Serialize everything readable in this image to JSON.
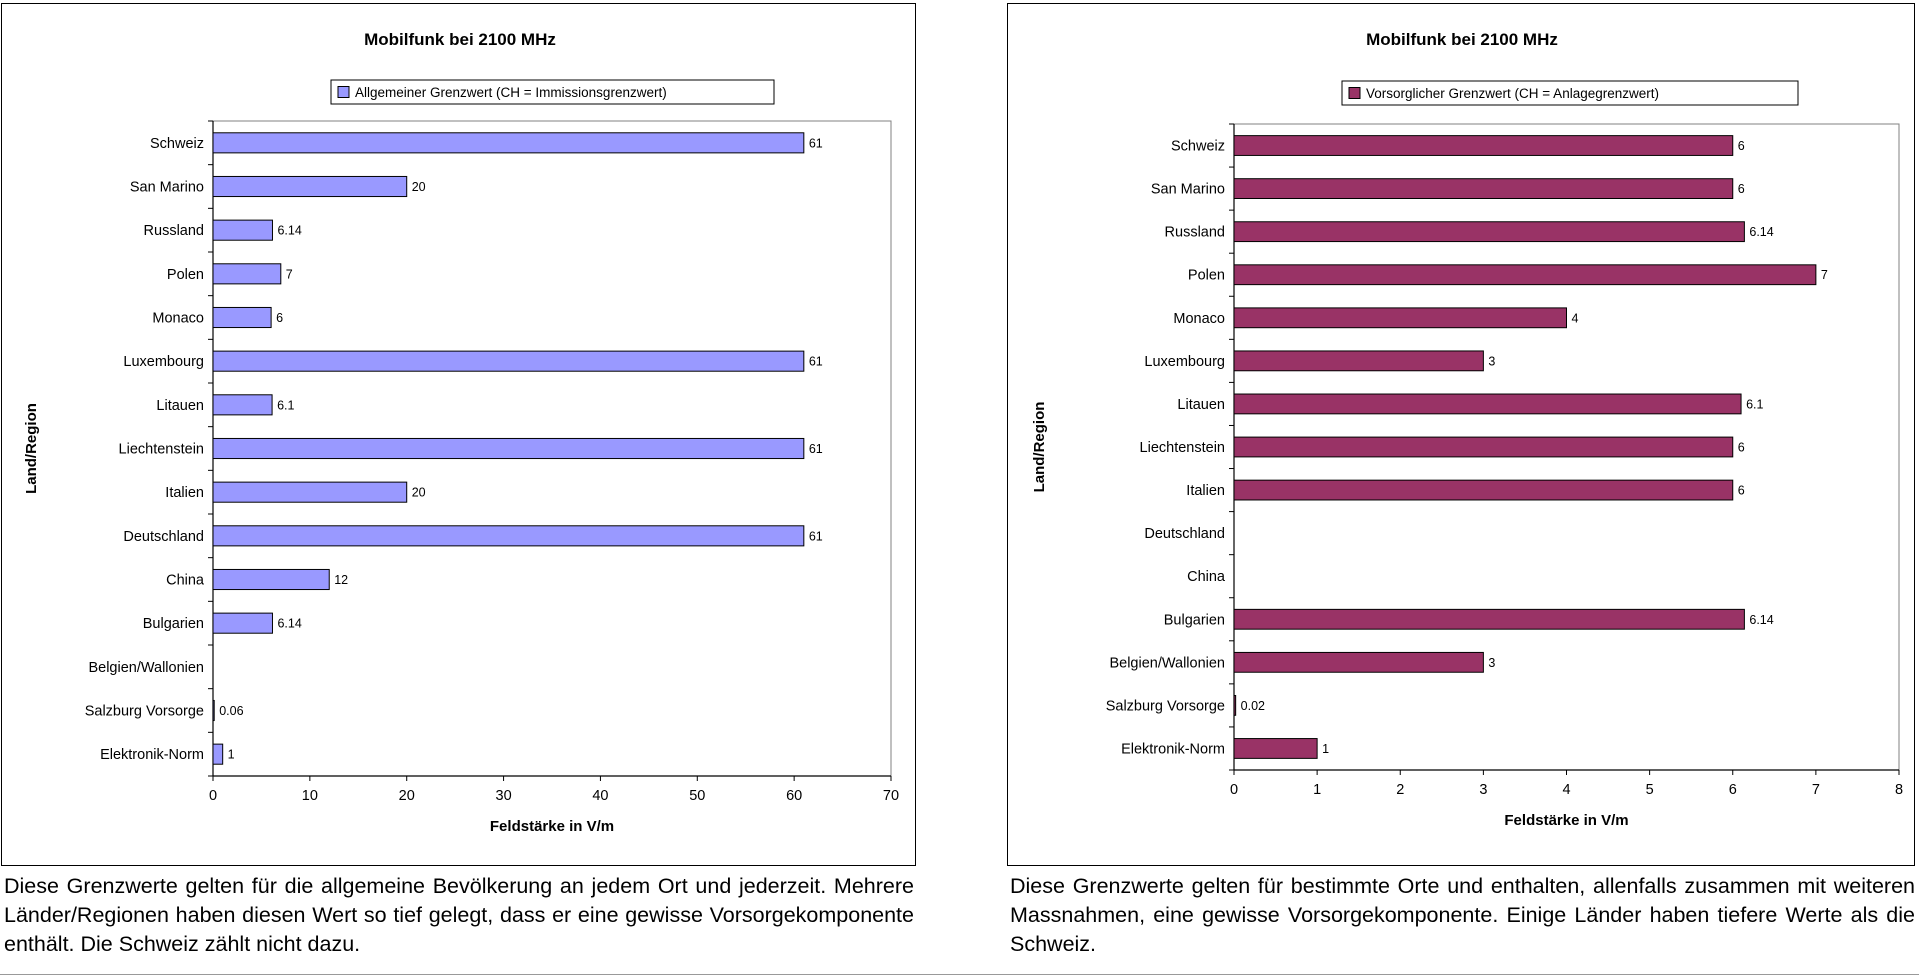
{
  "chart_data": [
    {
      "type": "bar",
      "orientation": "horizontal",
      "title": "Mobilfunk bei 2100 MHz",
      "xlabel": "Feldstärke in V/m",
      "ylabel": "Land/Region",
      "xlim": [
        0,
        70
      ],
      "xticks": [
        "0",
        "10",
        "20",
        "30",
        "40",
        "50",
        "60",
        "70"
      ],
      "grid": false,
      "legend_position": "top",
      "categories": [
        "Schweiz",
        "San Marino",
        "Russland",
        "Polen",
        "Monaco",
        "Luxembourg",
        "Litauen",
        "Liechtenstein",
        "Italien",
        "Deutschland",
        "China",
        "Bulgarien",
        "Belgien/Wallonien",
        "Salzburg Vorsorge",
        "Elektronik-Norm"
      ],
      "series": [
        {
          "name": "Allgemeiner Grenzwert (CH = Immissionsgrenzwert)",
          "color": "#9999ff",
          "values": [
            61,
            20,
            6.14,
            7,
            6,
            61,
            6.1,
            61,
            20,
            61,
            12,
            6.14,
            null,
            0.06,
            1
          ],
          "data_labels": [
            "61",
            "20",
            "6.14",
            "7",
            "6",
            "61",
            "6.1",
            "61",
            "20",
            "61",
            "12",
            "6.14",
            "",
            "0.06",
            "1"
          ]
        }
      ]
    },
    {
      "type": "bar",
      "orientation": "horizontal",
      "title": "Mobilfunk bei 2100 MHz",
      "xlabel": "Feldstärke in V/m",
      "ylabel": "Land/Region",
      "xlim": [
        0,
        8
      ],
      "xticks": [
        "0",
        "1",
        "2",
        "3",
        "4",
        "5",
        "6",
        "7",
        "8"
      ],
      "grid": false,
      "legend_position": "top",
      "categories": [
        "Schweiz",
        "San Marino",
        "Russland",
        "Polen",
        "Monaco",
        "Luxembourg",
        "Litauen",
        "Liechtenstein",
        "Italien",
        "Deutschland",
        "China",
        "Bulgarien",
        "Belgien/Wallonien",
        "Salzburg Vorsorge",
        "Elektronik-Norm"
      ],
      "series": [
        {
          "name": "Vorsorglicher Grenzwert (CH = Anlagegrenzwert)",
          "color": "#993366",
          "values": [
            6,
            6,
            6.14,
            7,
            4,
            3,
            6.1,
            6,
            6,
            null,
            null,
            6.14,
            3,
            0.02,
            1
          ],
          "data_labels": [
            "6",
            "6",
            "6.14",
            "7",
            "4",
            "3",
            "6.1",
            "6",
            "6",
            "",
            "",
            "6.14",
            "3",
            "0.02",
            "1"
          ]
        }
      ]
    }
  ],
  "captions": {
    "left": "Diese Grenzwerte gelten für die allgemeine Bevölkerung an jedem Ort und jederzeit. Mehrere Länder/Regionen haben diesen Wert so tief gelegt, dass er eine gewisse Vorsorgekomponente enthält. Die Schweiz zählt nicht dazu.",
    "right": "Diese Grenzwerte gelten für bestimmte Orte und enthalten, allenfalls zusammen mit weiteren Massnahmen, eine gewisse Vorsorgekomponente. Einige Länder haben tiefere Werte als die Schweiz."
  }
}
